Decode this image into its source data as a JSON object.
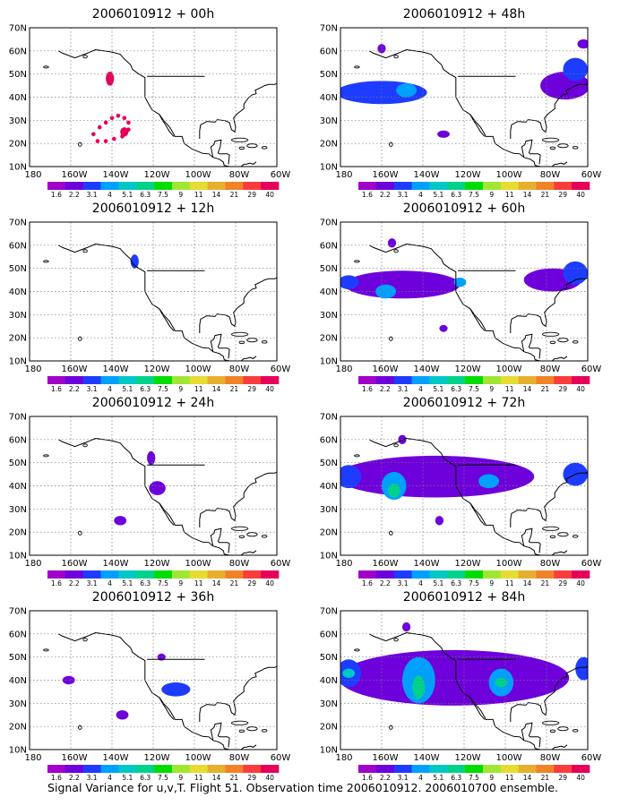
{
  "panels": [
    {
      "id": "p00",
      "title": "2006010912 + 00h",
      "blobs": [
        {
          "lon": -141,
          "lat": 48,
          "rx": 2,
          "ry": 3,
          "level": 12
        },
        {
          "lon": -134,
          "lat": 25,
          "rx": 2,
          "ry": 2,
          "level": 12
        }
      ],
      "dots": [
        [
          -149,
          24
        ],
        [
          -146,
          27
        ],
        [
          -143,
          29
        ],
        [
          -140,
          31
        ],
        [
          -137,
          32
        ],
        [
          -134,
          31
        ],
        [
          -132,
          29
        ],
        [
          -132,
          26
        ],
        [
          -135,
          23
        ],
        [
          -139,
          22
        ],
        [
          -143,
          21
        ],
        [
          -147,
          21
        ]
      ]
    },
    {
      "id": "p48",
      "title": "2006010912 + 48h",
      "blobs": [
        {
          "lon": -160,
          "lat": 42,
          "rx": 22,
          "ry": 5,
          "level": 2
        },
        {
          "lon": -148,
          "lat": 43,
          "rx": 5,
          "ry": 3,
          "level": 3
        },
        {
          "lon": -160,
          "lat": 61,
          "rx": 2,
          "ry": 2,
          "level": 1
        },
        {
          "lon": -130,
          "lat": 24,
          "rx": 3,
          "ry": 1.6,
          "level": 1
        },
        {
          "lon": -71,
          "lat": 45,
          "rx": 12,
          "ry": 6,
          "level": 1
        },
        {
          "lon": -66,
          "lat": 52,
          "rx": 6,
          "ry": 5,
          "level": 2
        },
        {
          "lon": -62,
          "lat": 63,
          "rx": 3,
          "ry": 2,
          "level": 1
        }
      ]
    },
    {
      "id": "p12",
      "title": "2006010912 + 12h",
      "blobs": [
        {
          "lon": -129,
          "lat": 53,
          "rx": 2,
          "ry": 3,
          "level": 2
        }
      ]
    },
    {
      "id": "p60",
      "title": "2006010912 + 60h",
      "blobs": [
        {
          "lon": -150,
          "lat": 43,
          "rx": 28,
          "ry": 6,
          "level": 1
        },
        {
          "lon": -176,
          "lat": 44,
          "rx": 5,
          "ry": 3,
          "level": 2
        },
        {
          "lon": -158,
          "lat": 40,
          "rx": 5,
          "ry": 3,
          "level": 3
        },
        {
          "lon": -122,
          "lat": 44,
          "rx": 3,
          "ry": 2,
          "level": 3
        },
        {
          "lon": -130,
          "lat": 24,
          "rx": 2,
          "ry": 1.5,
          "level": 1
        },
        {
          "lon": -77,
          "lat": 45,
          "rx": 14,
          "ry": 5,
          "level": 1
        },
        {
          "lon": -66,
          "lat": 48,
          "rx": 6,
          "ry": 5,
          "level": 2
        },
        {
          "lon": -155,
          "lat": 61,
          "rx": 2,
          "ry": 2,
          "level": 1
        }
      ]
    },
    {
      "id": "p24",
      "title": "2006010912 + 24h",
      "blobs": [
        {
          "lon": -118,
          "lat": 39,
          "rx": 4,
          "ry": 3,
          "level": 1
        },
        {
          "lon": -121,
          "lat": 52,
          "rx": 2,
          "ry": 3,
          "level": 1
        },
        {
          "lon": -136,
          "lat": 25,
          "rx": 3,
          "ry": 2,
          "level": 1
        }
      ]
    },
    {
      "id": "p72",
      "title": "2006010912 + 72h",
      "blobs": [
        {
          "lon": -134,
          "lat": 44,
          "rx": 48,
          "ry": 9,
          "level": 1
        },
        {
          "lon": -176,
          "lat": 44,
          "rx": 6,
          "ry": 5,
          "level": 2
        },
        {
          "lon": -154,
          "lat": 40,
          "rx": 6,
          "ry": 6,
          "level": 3
        },
        {
          "lon": -154,
          "lat": 38,
          "rx": 3,
          "ry": 3,
          "level": 5
        },
        {
          "lon": -108,
          "lat": 42,
          "rx": 5,
          "ry": 3,
          "level": 3
        },
        {
          "lon": -150,
          "lat": 60,
          "rx": 2,
          "ry": 2,
          "level": 1
        },
        {
          "lon": -132,
          "lat": 25,
          "rx": 2,
          "ry": 2,
          "level": 1
        },
        {
          "lon": -66,
          "lat": 45,
          "rx": 6,
          "ry": 5,
          "level": 2
        }
      ]
    },
    {
      "id": "p36",
      "title": "2006010912 + 36h",
      "blobs": [
        {
          "lon": -109,
          "lat": 36,
          "rx": 7,
          "ry": 3,
          "level": 2
        },
        {
          "lon": -116,
          "lat": 50,
          "rx": 2,
          "ry": 1.5,
          "level": 1
        },
        {
          "lon": -161,
          "lat": 40,
          "rx": 3,
          "ry": 1.8,
          "level": 1
        },
        {
          "lon": -135,
          "lat": 25,
          "rx": 3,
          "ry": 2,
          "level": 1
        }
      ]
    },
    {
      "id": "p84",
      "title": "2006010912 + 84h",
      "blobs": [
        {
          "lon": -125,
          "lat": 41,
          "rx": 56,
          "ry": 12,
          "level": 1
        },
        {
          "lon": -176,
          "lat": 43,
          "rx": 6,
          "ry": 6,
          "level": 2
        },
        {
          "lon": -176,
          "lat": 43,
          "rx": 3,
          "ry": 2,
          "level": 4
        },
        {
          "lon": -142,
          "lat": 40,
          "rx": 8,
          "ry": 10,
          "level": 3
        },
        {
          "lon": -142,
          "lat": 37,
          "rx": 3,
          "ry": 5,
          "level": 5
        },
        {
          "lon": -102,
          "lat": 39,
          "rx": 6,
          "ry": 6,
          "level": 3
        },
        {
          "lon": -102,
          "lat": 39,
          "rx": 3,
          "ry": 2,
          "level": 5
        },
        {
          "lon": -148,
          "lat": 63,
          "rx": 2,
          "ry": 2,
          "level": 1
        },
        {
          "lon": -62,
          "lat": 45,
          "rx": 4,
          "ry": 5,
          "level": 2
        }
      ]
    }
  ],
  "x_ticks": [
    "180",
    "160W",
    "140W",
    "120W",
    "100W",
    "80W",
    "60W"
  ],
  "x_tick_lons": [
    -180,
    -160,
    -140,
    -120,
    -100,
    -80,
    -60
  ],
  "y_ticks": [
    "10N",
    "20N",
    "30N",
    "40N",
    "50N",
    "60N",
    "70N"
  ],
  "y_tick_lats": [
    10,
    20,
    30,
    40,
    50,
    60,
    70
  ],
  "colorbar": {
    "labels": [
      "1.6",
      "2.2",
      "3.1",
      "4",
      "5.1",
      "6.3",
      "7.5",
      "9",
      "11",
      "14",
      "21",
      "29",
      "40"
    ],
    "colors": [
      "#a000c8",
      "#6e00dc",
      "#1e3cff",
      "#00a0ff",
      "#00c8c8",
      "#00d28c",
      "#00dc00",
      "#a0e632",
      "#e6dc32",
      "#e6af2d",
      "#f08228",
      "#fa3c3c",
      "#e6005a"
    ]
  },
  "caption": "Signal Variance for u,v,T. Flight 51. Observation time 2006010912. 2006010700 ensemble."
}
